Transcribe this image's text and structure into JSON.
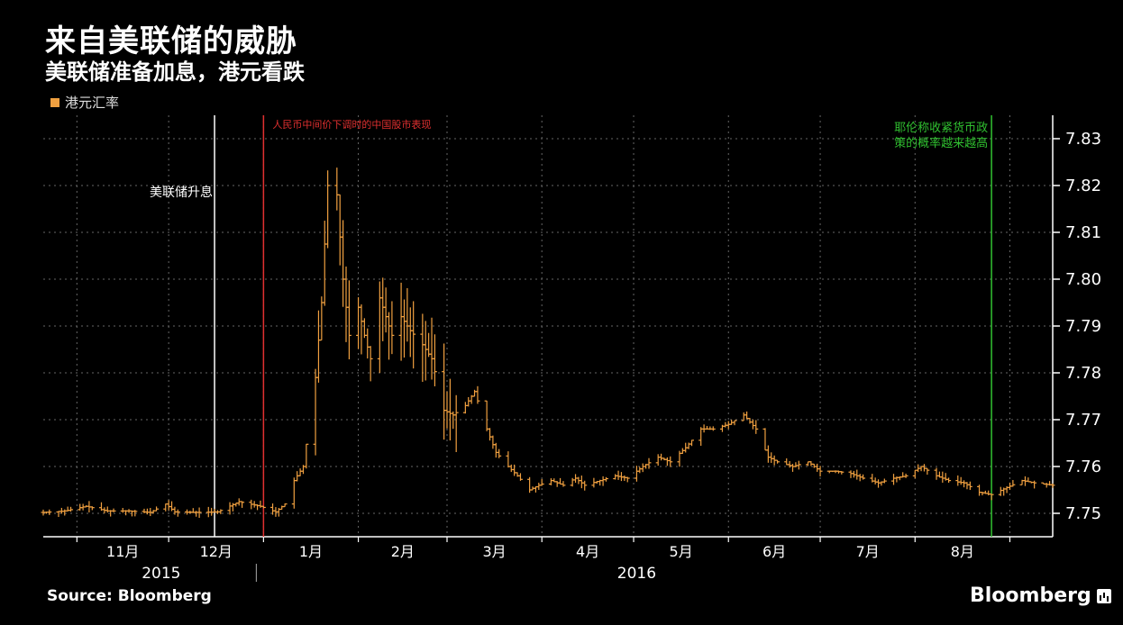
{
  "header": {
    "title": "来自美联储的威胁",
    "subtitle": "美联储准备加息，港元看跌"
  },
  "legend": {
    "label": "港元汇率",
    "color": "#f0a040"
  },
  "footer": {
    "source": "Source: Bloomberg",
    "brand": "Bloomberg"
  },
  "chart_data": {
    "type": "line",
    "style": "ohlc-bars",
    "series": [
      {
        "name": "港元汇率",
        "color": "#f0a040"
      }
    ],
    "ylim": [
      7.745,
      7.835
    ],
    "yticks": [
      "7.75",
      "7.76",
      "7.77",
      "7.78",
      "7.79",
      "7.80",
      "7.81",
      "7.82",
      "7.83"
    ],
    "grid": true,
    "y_axis_side": "right",
    "months": [
      "11月",
      "12月",
      "1月",
      "2月",
      "3月",
      "4月",
      "5月",
      "6月",
      "7月",
      "8月"
    ],
    "years": [
      {
        "label": "2015",
        "months": [
          "11月",
          "12月"
        ]
      },
      {
        "label": "2016",
        "months": [
          "1月",
          "2月",
          "3月",
          "4月",
          "5月",
          "6月",
          "7月",
          "8月"
        ]
      }
    ],
    "x_start": "2015-10-21",
    "x_end": "2016-09-15",
    "points": [
      [
        "2015-10-21",
        7.7502
      ],
      [
        "2015-10-28",
        7.7505
      ],
      [
        "2015-11-04",
        7.7515
      ],
      [
        "2015-11-11",
        7.7505
      ],
      [
        "2015-11-18",
        7.7505
      ],
      [
        "2015-11-25",
        7.7502
      ],
      [
        "2015-11-30",
        7.752
      ],
      [
        "2015-12-03",
        7.7503
      ],
      [
        "2015-12-10",
        7.7502
      ],
      [
        "2015-12-17",
        7.7503
      ],
      [
        "2015-12-24",
        7.7525
      ],
      [
        "2015-12-31",
        7.7515
      ],
      [
        "2016-01-05",
        7.7503
      ],
      [
        "2016-01-08",
        7.752
      ],
      [
        "2016-01-11",
        7.757
      ],
      [
        "2016-01-14",
        7.76
      ],
      [
        "2016-01-18",
        7.779
      ],
      [
        "2016-01-20",
        7.795
      ],
      [
        "2016-01-22",
        7.82
      ],
      [
        "2016-01-25",
        7.818
      ],
      [
        "2016-01-27",
        7.8
      ],
      [
        "2016-01-29",
        7.788
      ],
      [
        "2016-02-01",
        7.794
      ],
      [
        "2016-02-03",
        7.788
      ],
      [
        "2016-02-05",
        7.783
      ],
      [
        "2016-02-08",
        7.796
      ],
      [
        "2016-02-12",
        7.788
      ],
      [
        "2016-02-15",
        7.792
      ],
      [
        "2016-02-18",
        7.789
      ],
      [
        "2016-02-22",
        7.786
      ],
      [
        "2016-02-25",
        7.783
      ],
      [
        "2016-02-29",
        7.772
      ],
      [
        "2016-03-03",
        7.771
      ],
      [
        "2016-03-07",
        7.773
      ],
      [
        "2016-03-10",
        7.776
      ],
      [
        "2016-03-14",
        7.768
      ],
      [
        "2016-03-17",
        7.763
      ],
      [
        "2016-03-21",
        7.76
      ],
      [
        "2016-03-24",
        7.758
      ],
      [
        "2016-03-28",
        7.755
      ],
      [
        "2016-03-31",
        7.756
      ],
      [
        "2016-04-04",
        7.757
      ],
      [
        "2016-04-08",
        7.756
      ],
      [
        "2016-04-12",
        7.7575
      ],
      [
        "2016-04-15",
        7.756
      ],
      [
        "2016-04-20",
        7.757
      ],
      [
        "2016-04-25",
        7.758
      ],
      [
        "2016-04-29",
        7.7575
      ],
      [
        "2016-05-04",
        7.76
      ],
      [
        "2016-05-09",
        7.762
      ],
      [
        "2016-05-13",
        7.761
      ],
      [
        "2016-05-18",
        7.764
      ],
      [
        "2016-05-23",
        7.768
      ],
      [
        "2016-05-27",
        7.768
      ],
      [
        "2016-06-01",
        7.769
      ],
      [
        "2016-06-06",
        7.771
      ],
      [
        "2016-06-10",
        7.768
      ],
      [
        "2016-06-14",
        7.762
      ],
      [
        "2016-06-17",
        7.761
      ],
      [
        "2016-06-22",
        7.76
      ],
      [
        "2016-06-27",
        7.761
      ],
      [
        "2016-07-01",
        7.759
      ],
      [
        "2016-07-06",
        7.759
      ],
      [
        "2016-07-11",
        7.7585
      ],
      [
        "2016-07-15",
        7.7575
      ],
      [
        "2016-07-20",
        7.7565
      ],
      [
        "2016-07-25",
        7.7575
      ],
      [
        "2016-07-29",
        7.758
      ],
      [
        "2016-08-03",
        7.76
      ],
      [
        "2016-08-08",
        7.758
      ],
      [
        "2016-08-12",
        7.757
      ],
      [
        "2016-08-17",
        7.7565
      ],
      [
        "2016-08-22",
        7.7545
      ],
      [
        "2016-08-26",
        7.754
      ],
      [
        "2016-08-31",
        7.7555
      ],
      [
        "2016-09-05",
        7.757
      ],
      [
        "2016-09-09",
        7.7565
      ],
      [
        "2016-09-15",
        7.756
      ]
    ],
    "annotations": [
      {
        "date": "2015-12-16",
        "text": "美联储升息",
        "color": "#ffffff"
      },
      {
        "date": "2016-01-01",
        "text": "人民币中间价下调时的中国股市表现",
        "color": "#e03030"
      },
      {
        "date": "2016-08-26",
        "text": "耶伦称收紧货币政策的概率越来越高",
        "color": "#30c030"
      }
    ]
  }
}
